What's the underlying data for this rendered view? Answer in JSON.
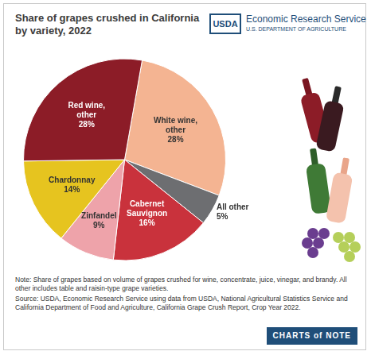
{
  "header": {
    "logo": "USDA",
    "agency": "Economic Research Service",
    "department": "U.S. DEPARTMENT OF AGRICULTURE"
  },
  "chart_data": {
    "type": "pie",
    "title": "Share of grapes crushed in California by variety, 2022",
    "categories": [
      "White wine, other",
      "All other",
      "Cabernet Sauvignon",
      "Zinfandel",
      "Chardonnay",
      "Red wine, other"
    ],
    "values": [
      28,
      5,
      16,
      9,
      14,
      28
    ],
    "value_labels": [
      "28%",
      "5%",
      "16%",
      "9%",
      "14%",
      "28%"
    ],
    "colors": [
      "#f4b492",
      "#6d6e71",
      "#c9323c",
      "#eea3aa",
      "#e6c41f",
      "#8c1c27"
    ],
    "data_labels": true
  },
  "notes": [
    "Note: Share of grapes based on volume of grapes crushed for wine, concentrate, juice, vinegar, and brandy. All other includes table and raisin-type grape varieties.",
    "Source: USDA, Economic Research Service using data from USDA, National Agricultural Statistics Service and California Department of Food and Agriculture, California Grape Crush Report, Crop Year 2022."
  ],
  "footer": "CHARTS of NOTE"
}
